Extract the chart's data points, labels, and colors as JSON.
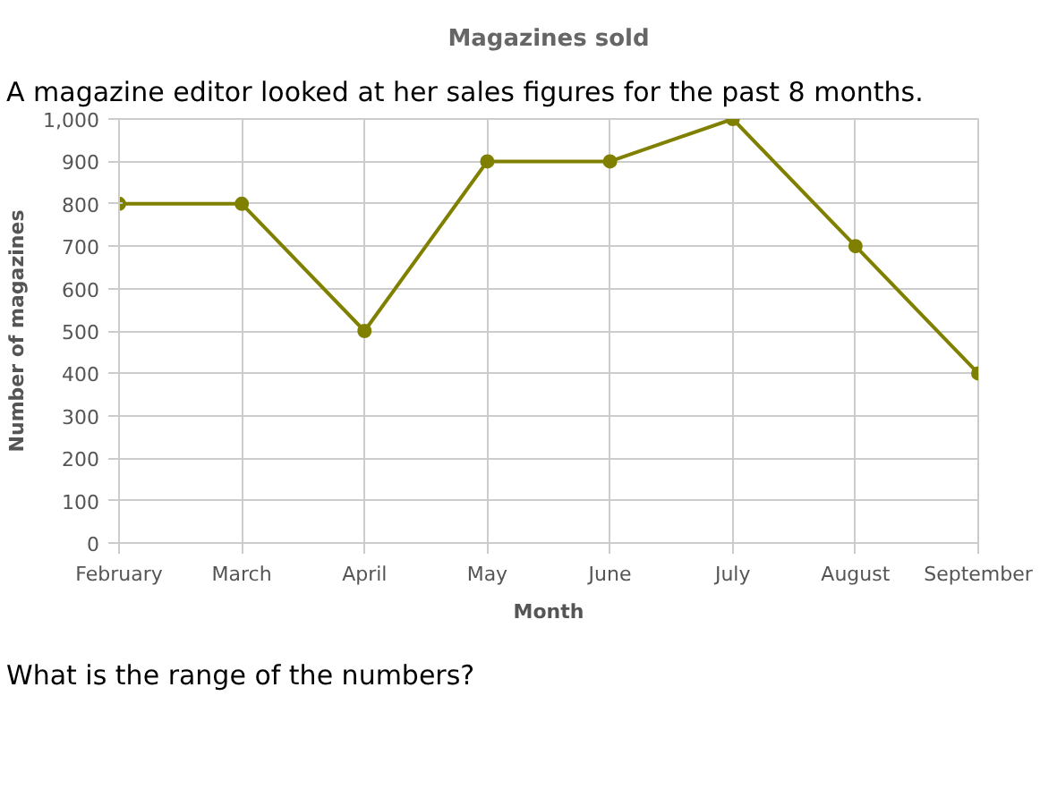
{
  "chart_data": {
    "type": "line",
    "title": "Magazines sold",
    "xlabel": "Month",
    "ylabel": "Number of magazines",
    "categories": [
      "February",
      "March",
      "April",
      "May",
      "June",
      "July",
      "August",
      "September"
    ],
    "series": [
      {
        "color": "#808000",
        "values": [
          800,
          800,
          500,
          900,
          900,
          1000,
          700,
          400
        ]
      }
    ],
    "ylim": [
      0,
      1000
    ],
    "yticks": [
      0,
      {
        "value": 100,
        "label": "100"
      },
      200,
      300,
      400,
      500,
      600,
      700,
      800,
      900,
      {
        "value": 1000,
        "label": "1,000"
      }
    ],
    "grid": true,
    "marker": "circle",
    "line_style": "solid",
    "annotations": [
      "A magazine editor looked at her sales figures for the past 8 months.",
      "What is the range of the numbers?"
    ]
  }
}
